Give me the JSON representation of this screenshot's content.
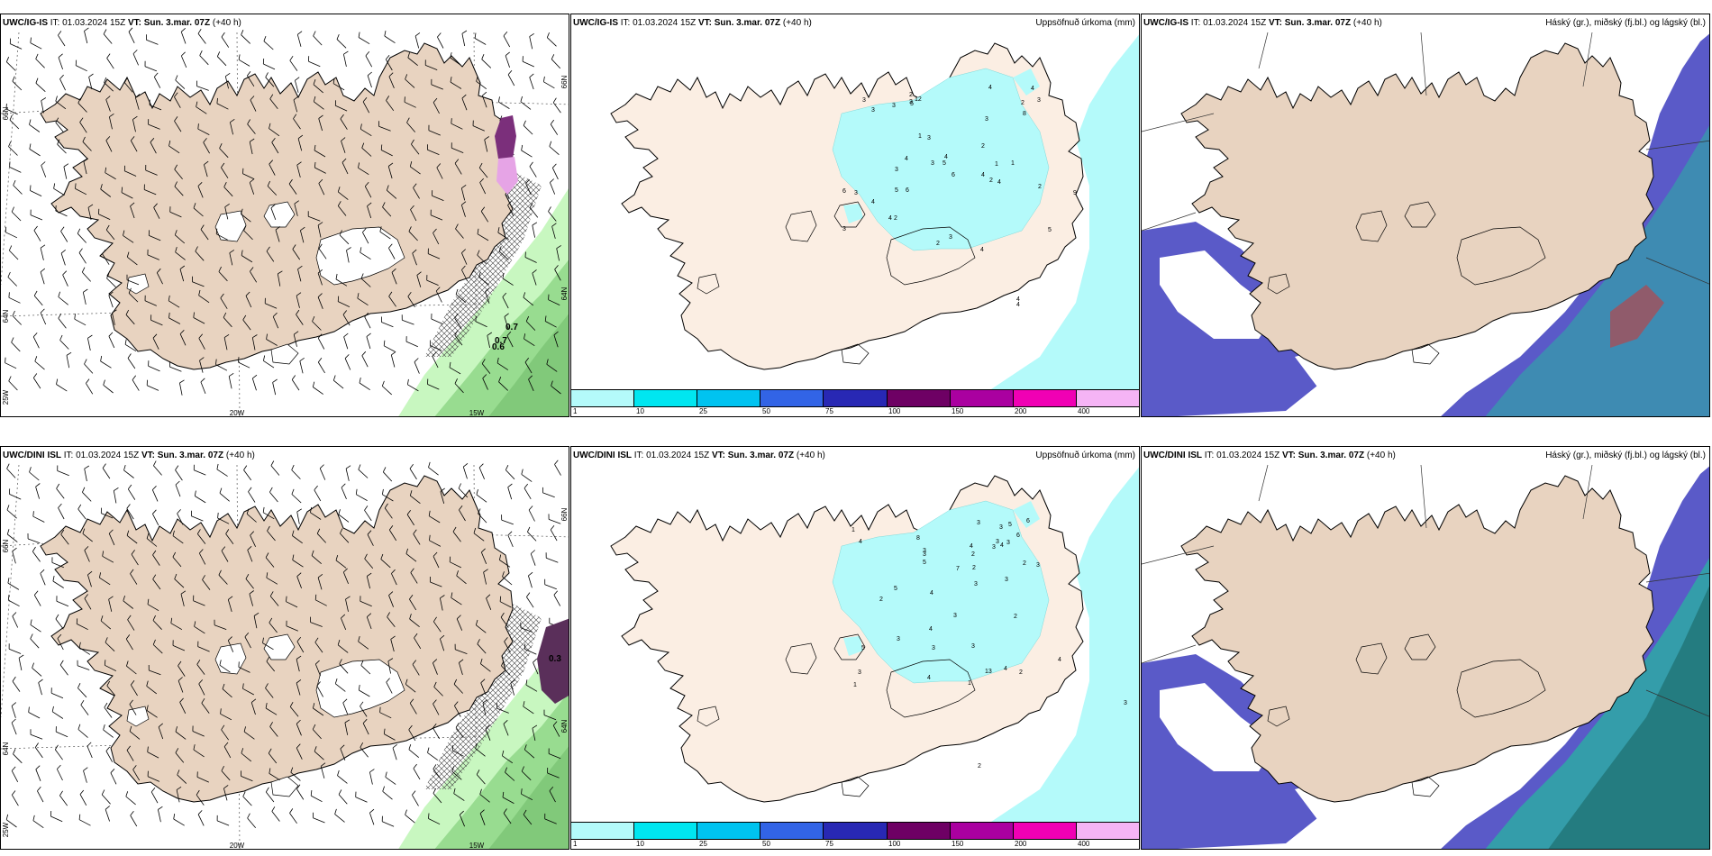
{
  "panels": [
    {
      "id": "p1",
      "title_bold": "UWC/IG-IS",
      "it_label": " IT: 01.03.2024 15Z ",
      "vt_bold": "VT: Sun. 3.mar. 07Z",
      "lead": " (+40 h)",
      "right_title": "",
      "kind": "wind",
      "lon_labels": [
        "20W",
        "15W"
      ],
      "lat_labels_left": [
        "66N",
        "64N",
        "25W"
      ],
      "lat_labels_right": [
        "66N",
        "64N"
      ],
      "values": [
        "0.7",
        "0.7",
        "0.6"
      ]
    },
    {
      "id": "p2",
      "title_bold": "UWC/IG-IS",
      "it_label": " IT: 01.03.2024 15Z ",
      "vt_bold": "VT: Sun. 3.mar. 07Z",
      "lead": " (+40 h)",
      "right_title": "Uppsöfnuð úrkoma (mm)",
      "kind": "precip",
      "values": [
        "5",
        "6",
        "3",
        "4",
        "4",
        "8",
        "3",
        "5",
        "4",
        "4",
        "6",
        "3",
        "1",
        "2",
        "4",
        "4",
        "3",
        "2",
        "3",
        "6",
        "3",
        "12",
        "3",
        "5",
        "3",
        "3",
        "1",
        "3",
        "2",
        "1",
        "2",
        "5",
        "3",
        "2",
        "4",
        "4",
        "3",
        "9",
        "4",
        "2",
        "4",
        "4",
        "2"
      ]
    },
    {
      "id": "p3",
      "title_bold": "UWC/IG-IS",
      "it_label": " IT: 01.03.2024 15Z ",
      "vt_bold": "VT: Sun. 3.mar. 07Z",
      "lead": " (+40 h)",
      "right_title": "Háský (gr.), miðský (fj.bl.) og lágský (bl.)",
      "kind": "cloud"
    },
    {
      "id": "p4",
      "title_bold": "UWC/DINI ISL",
      "it_label": " IT: 01.03.2024 15Z ",
      "vt_bold": "VT: Sun. 3.mar. 07Z",
      "lead": " (+40 h)",
      "right_title": "",
      "kind": "wind",
      "lon_labels": [
        "20W",
        "15W"
      ],
      "lat_labels_left": [
        "66N",
        "64N",
        "25W"
      ],
      "lat_labels_right": [
        "66N",
        "64N"
      ],
      "values": [
        "0.3"
      ]
    },
    {
      "id": "p5",
      "title_bold": "UWC/DINI ISL",
      "it_label": " IT: 01.03.2024 15Z ",
      "vt_bold": "VT: Sun. 3.mar. 07Z",
      "lead": " (+40 h)",
      "right_title": "Uppsöfnuð úrkoma (mm)",
      "kind": "precip",
      "values": [
        "1",
        "5",
        "3",
        "6",
        "3",
        "2",
        "3",
        "5",
        "4",
        "3",
        "4",
        "3",
        "8",
        "4",
        "2",
        "2",
        "4",
        "3",
        "2",
        "1",
        "5",
        "3",
        "13",
        "7",
        "2",
        "3",
        "4",
        "6",
        "3",
        "3",
        "1",
        "2",
        "3",
        "3",
        "5",
        "3",
        "4",
        "4",
        "3",
        "2",
        "3",
        "3",
        "4"
      ]
    },
    {
      "id": "p6",
      "title_bold": "UWC/DINI ISL",
      "it_label": " IT: 01.03.2024 15Z ",
      "vt_bold": "VT: Sun. 3.mar. 07Z",
      "lead": " (+40 h)",
      "right_title": "Háský (gr.), miðský (fj.bl.) og lágský (bl.)",
      "kind": "cloud"
    }
  ],
  "colorbar": {
    "colors": [
      "#b4fafa",
      "#00e6f0",
      "#00c3f0",
      "#3264e6",
      "#2828b4",
      "#6e0064",
      "#aa00a0",
      "#f000b4",
      "#f5b4f5"
    ],
    "ticks": [
      "1",
      "10",
      "25",
      "50",
      "75",
      "100",
      "150",
      "200",
      "400"
    ]
  },
  "colors": {
    "land": "#e8d3c0",
    "land_precip": "#fbeee3",
    "precip_light": "#b4fafa",
    "cloud_low": "#5a5ac8",
    "cloud_mid": "#28b4a0",
    "cloud_high": "#c83c3c"
  }
}
